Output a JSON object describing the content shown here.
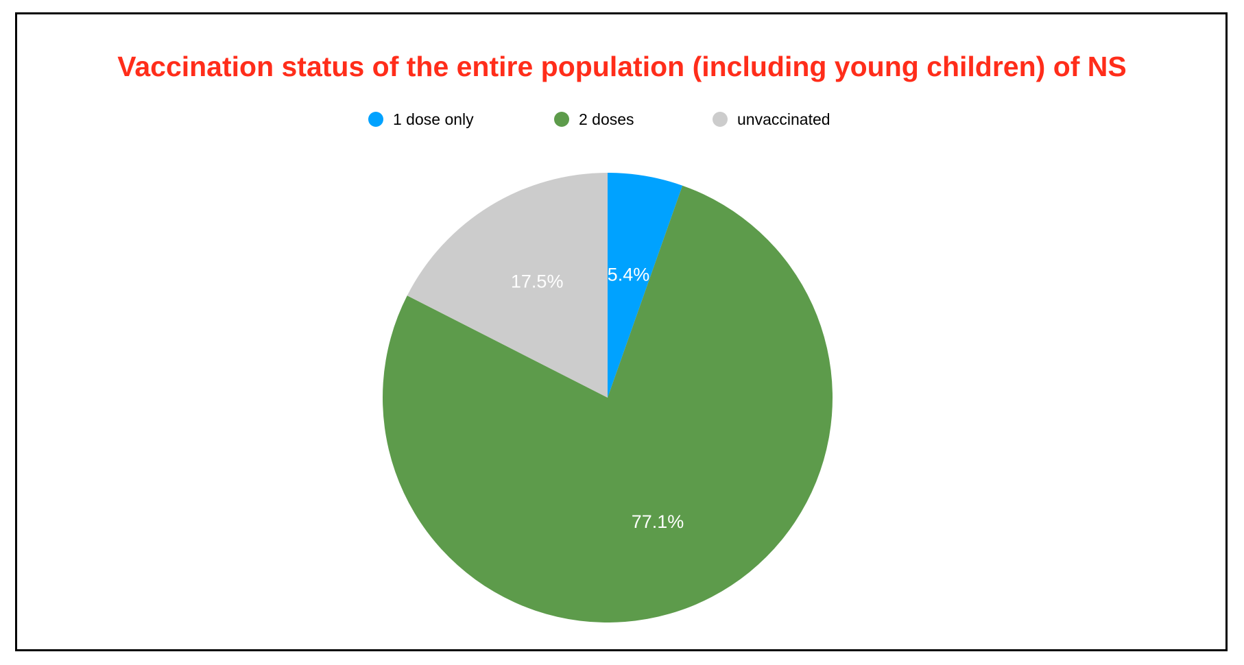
{
  "chart_data": {
    "type": "pie",
    "title": "Vaccination status of the entire population (including young children) of NS",
    "categories": [
      "1 dose only",
      "2 doses",
      "unvaccinated"
    ],
    "values": [
      5.4,
      77.1,
      17.5
    ],
    "labels": [
      "5.4%",
      "77.1%",
      "17.5%"
    ],
    "colors": [
      "#00a2ff",
      "#5d9b4b",
      "#cccccc"
    ],
    "legend_position": "top",
    "title_color": "#ff2d1a"
  }
}
